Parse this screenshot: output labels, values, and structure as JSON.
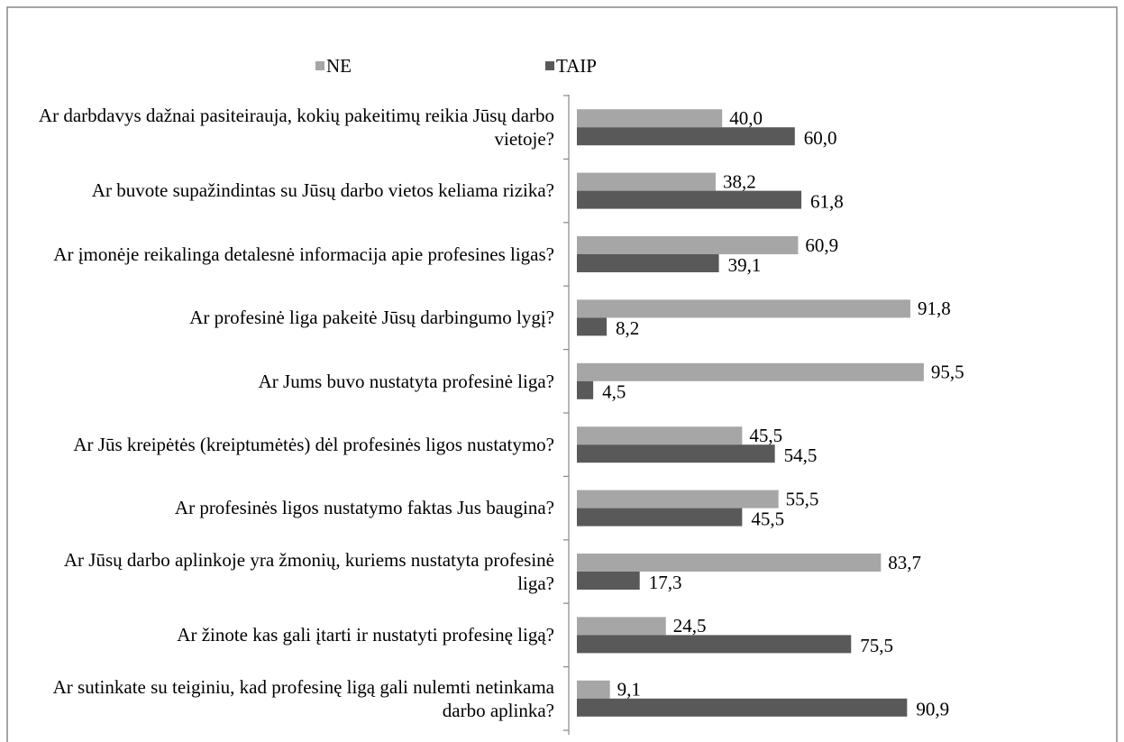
{
  "chart_data": {
    "type": "bar",
    "orientation": "horizontal",
    "categories": [
      "Ar darbdavys dažnai pasiteirauja, kokių pakeitimų reikia Jūsų darbo vietoje?",
      "Ar buvote supažindintas su Jūsų darbo vietos keliama rizika?",
      "Ar įmonėje reikalinga detalesnė informacija apie profesines ligas?",
      "Ar profesinė liga pakeitė Jūsų darbingumo lygį?",
      "Ar Jums buvo nustatyta profesinė liga?",
      "Ar Jūs kreipėtės (kreiptumėtės) dėl profesinės ligos nustatymo?",
      "Ar profesinės ligos nustatymo faktas Jus baugina?",
      "Ar Jūsų darbo aplinkoje yra žmonių, kuriems nustatyta profesinė liga?",
      "Ar žinote kas gali įtarti ir nustatyti profesinę ligą?",
      "Ar sutinkate su teiginiu, kad profesinę ligą gali nulemti netinkama darbo aplinka?"
    ],
    "series": [
      {
        "name": "NE",
        "color": "#a6a6a6",
        "values": [
          40.0,
          38.2,
          60.9,
          91.8,
          95.5,
          45.5,
          55.5,
          83.7,
          24.5,
          9.1
        ],
        "value_labels": [
          "40,0",
          "38,2",
          "60,9",
          "91,8",
          "95,5",
          "45,5",
          "55,5",
          "83,7",
          "24,5",
          "9,1"
        ]
      },
      {
        "name": "TAIP",
        "color": "#595959",
        "values": [
          60.0,
          61.8,
          39.1,
          8.2,
          4.5,
          54.5,
          45.5,
          17.3,
          75.5,
          90.9
        ],
        "value_labels": [
          "60,0",
          "61,8",
          "39,1",
          "8,2",
          "4,5",
          "54,5",
          "45,5",
          "17,3",
          "75,5",
          "90,9"
        ]
      }
    ],
    "xlim": [
      0,
      100
    ],
    "legend": "top"
  }
}
